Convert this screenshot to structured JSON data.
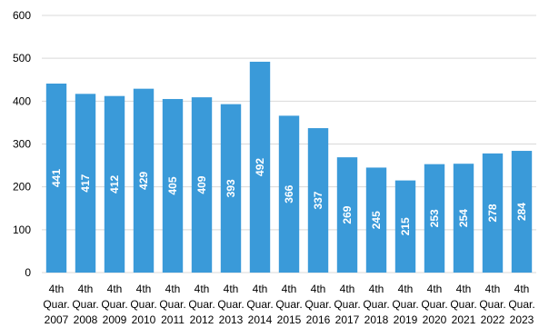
{
  "chart_data": {
    "type": "bar",
    "categories": [
      [
        "4th",
        "Quar.",
        "2007"
      ],
      [
        "4th",
        "Quar.",
        "2008"
      ],
      [
        "4th",
        "Quar.",
        "2009"
      ],
      [
        "4th",
        "Quar.",
        "2010"
      ],
      [
        "4th",
        "Quar.",
        "2011"
      ],
      [
        "4th",
        "Quar.",
        "2012"
      ],
      [
        "4th",
        "Quar.",
        "2013"
      ],
      [
        "4th",
        "Quar.",
        "2014"
      ],
      [
        "4th",
        "Quar.",
        "2015"
      ],
      [
        "4th",
        "Quar.",
        "2016"
      ],
      [
        "4th",
        "Quar.",
        "2017"
      ],
      [
        "4th",
        "Quar.",
        "2018"
      ],
      [
        "4th",
        "Quar.",
        "2019"
      ],
      [
        "4th",
        "Quar.",
        "2020"
      ],
      [
        "4th",
        "Quar.",
        "2021"
      ],
      [
        "4th",
        "Quar.",
        "2022"
      ],
      [
        "4th",
        "Quar.",
        "2023"
      ]
    ],
    "values": [
      441,
      417,
      412,
      429,
      405,
      409,
      393,
      492,
      366,
      337,
      269,
      245,
      215,
      253,
      254,
      278,
      284
    ],
    "data_labels": [
      "441",
      "417",
      "412",
      "429",
      "405",
      "409",
      "393",
      "492",
      "366",
      "337",
      "269",
      "245",
      "215",
      "253",
      "254",
      "278",
      "284"
    ],
    "ylim": [
      0,
      600
    ],
    "yticks": [
      0,
      100,
      200,
      300,
      400,
      500,
      600
    ],
    "ytick_labels": [
      "0",
      "100",
      "200",
      "300",
      "400",
      "500",
      "600"
    ],
    "grid": true,
    "legend": "none",
    "title": "",
    "xlabel": "",
    "ylabel": ""
  },
  "colors": {
    "bar": "#3a9ad9",
    "grid": "#d9d9d9",
    "bar_label": "#ffffff",
    "text": "#000000"
  }
}
